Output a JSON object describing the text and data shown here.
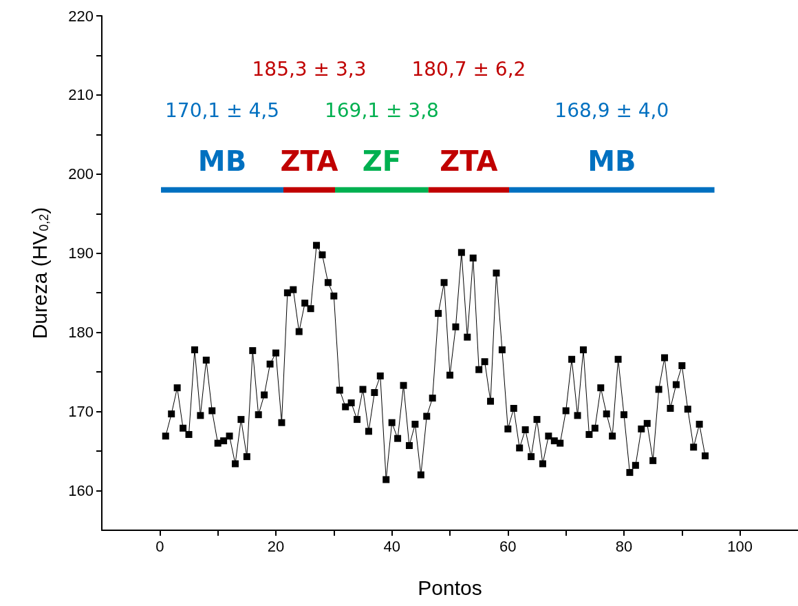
{
  "chart_data": {
    "type": "line",
    "xlabel": "Pontos",
    "ylabel": "Dureza (HV$_{0,2}$)",
    "xlim": [
      -10,
      110
    ],
    "xticks": [
      0,
      {
        "value": 10,
        "label": null
      },
      20,
      {
        "value": 30,
        "label": null
      },
      40,
      {
        "value": 50,
        "label": null
      },
      60,
      {
        "value": 70,
        "label": null
      },
      80,
      {
        "value": 90,
        "label": null
      },
      100
    ],
    "ylim": [
      155,
      220
    ],
    "yticks": [
      160,
      {
        "value": 165,
        "label": null
      },
      170,
      {
        "value": 175,
        "label": null
      },
      180,
      {
        "value": 185,
        "label": null
      },
      190,
      {
        "value": 195,
        "label": null
      },
      200,
      {
        "value": 205,
        "label": null
      },
      210,
      {
        "value": 215,
        "label": null
      },
      220
    ],
    "series": [
      {
        "color": "#000000",
        "marker": "square",
        "x": [
          1,
          2,
          3,
          4,
          5,
          6,
          7,
          8,
          9,
          10,
          11,
          12,
          13,
          14,
          15,
          16,
          17,
          18,
          19,
          20,
          21,
          22,
          23,
          24,
          25,
          26,
          27,
          28,
          29,
          30,
          31,
          32,
          33,
          34,
          35,
          36,
          37,
          38,
          39,
          40,
          41,
          42,
          43,
          44,
          45,
          46,
          47,
          48,
          49,
          50,
          51,
          52,
          53,
          54,
          55,
          56,
          57,
          58,
          59,
          60,
          61,
          62,
          63,
          64,
          65,
          66,
          67,
          68,
          69,
          70,
          71,
          72,
          73,
          74,
          75,
          76,
          77,
          78,
          79,
          80,
          81,
          82,
          83,
          84,
          85,
          86,
          87,
          88,
          89,
          90,
          91,
          92,
          93,
          94
        ],
        "values": [
          166.9,
          169.7,
          173.0,
          167.9,
          167.1,
          177.8,
          169.5,
          176.5,
          170.1,
          166.0,
          166.3,
          166.9,
          163.4,
          169.0,
          164.3,
          177.7,
          169.6,
          172.1,
          176.0,
          177.4,
          168.6,
          185.0,
          185.4,
          180.1,
          183.7,
          183.0,
          191.0,
          189.8,
          186.3,
          184.6,
          172.7,
          170.6,
          171.1,
          169.0,
          172.8,
          167.5,
          172.4,
          174.5,
          161.4,
          168.6,
          166.6,
          173.3,
          165.7,
          168.4,
          162.0,
          169.4,
          171.7,
          182.4,
          186.3,
          174.6,
          180.7,
          190.1,
          179.4,
          189.4,
          175.3,
          176.3,
          171.3,
          187.5,
          177.8,
          167.8,
          170.4,
          165.4,
          167.7,
          164.3,
          169.0,
          163.4,
          166.9,
          166.3,
          166.0,
          170.1,
          176.6,
          169.5,
          177.8,
          167.1,
          167.9,
          173.0,
          169.7,
          166.9,
          176.6,
          169.6,
          162.3,
          163.2,
          167.8,
          168.5,
          163.8,
          172.8,
          176.8,
          170.4,
          173.4,
          175.8,
          170.3,
          165.5,
          168.4,
          164.4
        ]
      },
      {
        "name": "MB",
        "color": "#0070c0",
        "marker": "none",
        "x": [
          0.2,
          21.3
        ],
        "values": [
          198,
          198
        ]
      },
      {
        "name": "ZTA",
        "color": "#c00000",
        "marker": "none",
        "x": [
          21.3,
          30.2
        ],
        "values": [
          198,
          198
        ]
      },
      {
        "name": "ZF",
        "color": "#00b050",
        "marker": "none",
        "x": [
          30.2,
          46.3
        ],
        "values": [
          198,
          198
        ]
      },
      {
        "name": "ZTA",
        "color": "#c00000",
        "marker": "none",
        "x": [
          46.3,
          60.2
        ],
        "values": [
          198,
          198
        ]
      },
      {
        "name": "MB",
        "color": "#0070c0",
        "marker": "none",
        "x": [
          60.2,
          95.6
        ],
        "values": [
          198,
          198
        ]
      }
    ],
    "annotations": [
      "170,1 ± 4,5",
      "185,3 ± 3,3",
      "169,1 ± 3,8",
      "180,7 ± 6,2",
      "168,9 ± 4,0"
    ]
  }
}
